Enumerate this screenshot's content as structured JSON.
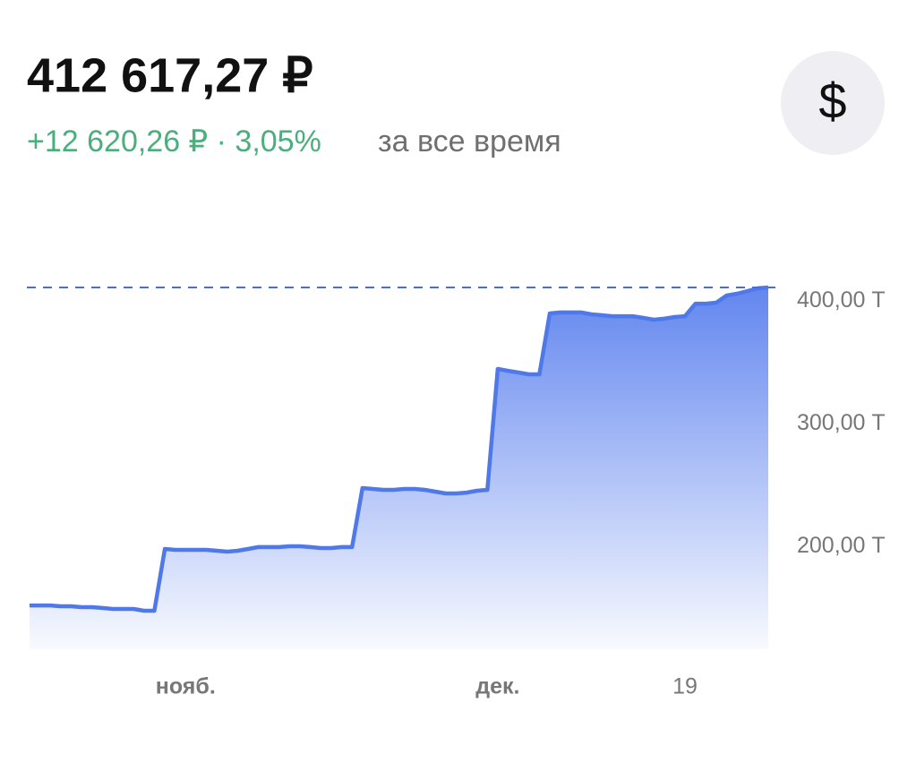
{
  "header": {
    "balance": "412 617,27 ₽",
    "change": "+12 620,26 ₽ · 3,05%",
    "period": "за все время",
    "currency_button": "$"
  },
  "chart_data": {
    "type": "area",
    "categories": [
      null,
      null,
      null,
      null,
      null,
      null,
      null,
      null,
      null,
      null,
      null,
      null,
      null,
      null,
      null,
      "нояб.",
      null,
      null,
      null,
      null,
      null,
      null,
      null,
      null,
      null,
      null,
      null,
      null,
      null,
      null,
      null,
      null,
      null,
      null,
      null,
      null,
      null,
      null,
      null,
      null,
      null,
      null,
      null,
      null,
      null,
      "дек.",
      null,
      null,
      null,
      null,
      null,
      null,
      null,
      null,
      null,
      null,
      null,
      null,
      null,
      null,
      null,
      null,
      null,
      "19",
      null,
      null,
      null,
      null,
      null,
      null,
      null,
      null
    ],
    "values": [
      150.7,
      150.7,
      150.7,
      150.0,
      150.0,
      149.3,
      149.3,
      148.6,
      147.8,
      147.8,
      147.8,
      146.4,
      146.4,
      196.7,
      196.0,
      196.0,
      196.0,
      196.0,
      195.2,
      194.5,
      195.2,
      196.7,
      198.2,
      198.2,
      198.2,
      198.9,
      198.9,
      198.2,
      197.4,
      197.4,
      198.2,
      198.2,
      246.3,
      245.6,
      244.8,
      244.8,
      245.6,
      245.6,
      244.8,
      243.4,
      241.9,
      241.9,
      242.6,
      244.1,
      244.8,
      343.3,
      341.8,
      340.4,
      338.9,
      338.9,
      388.5,
      389.3,
      389.3,
      389.3,
      387.8,
      387.1,
      386.3,
      386.3,
      386.3,
      384.9,
      383.4,
      384.2,
      385.6,
      386.3,
      396.5,
      396.5,
      397.3,
      403.1,
      404.6,
      406.8,
      409.0,
      409.7
    ],
    "color": "#4f78e8",
    "ylim": [
      115,
      425
    ],
    "yticks": [
      {
        "value": 200,
        "label": "200,00 Т"
      },
      {
        "value": 300,
        "label": "300,00 Т"
      },
      {
        "value": 400,
        "label": "400,00 Т"
      }
    ]
  }
}
